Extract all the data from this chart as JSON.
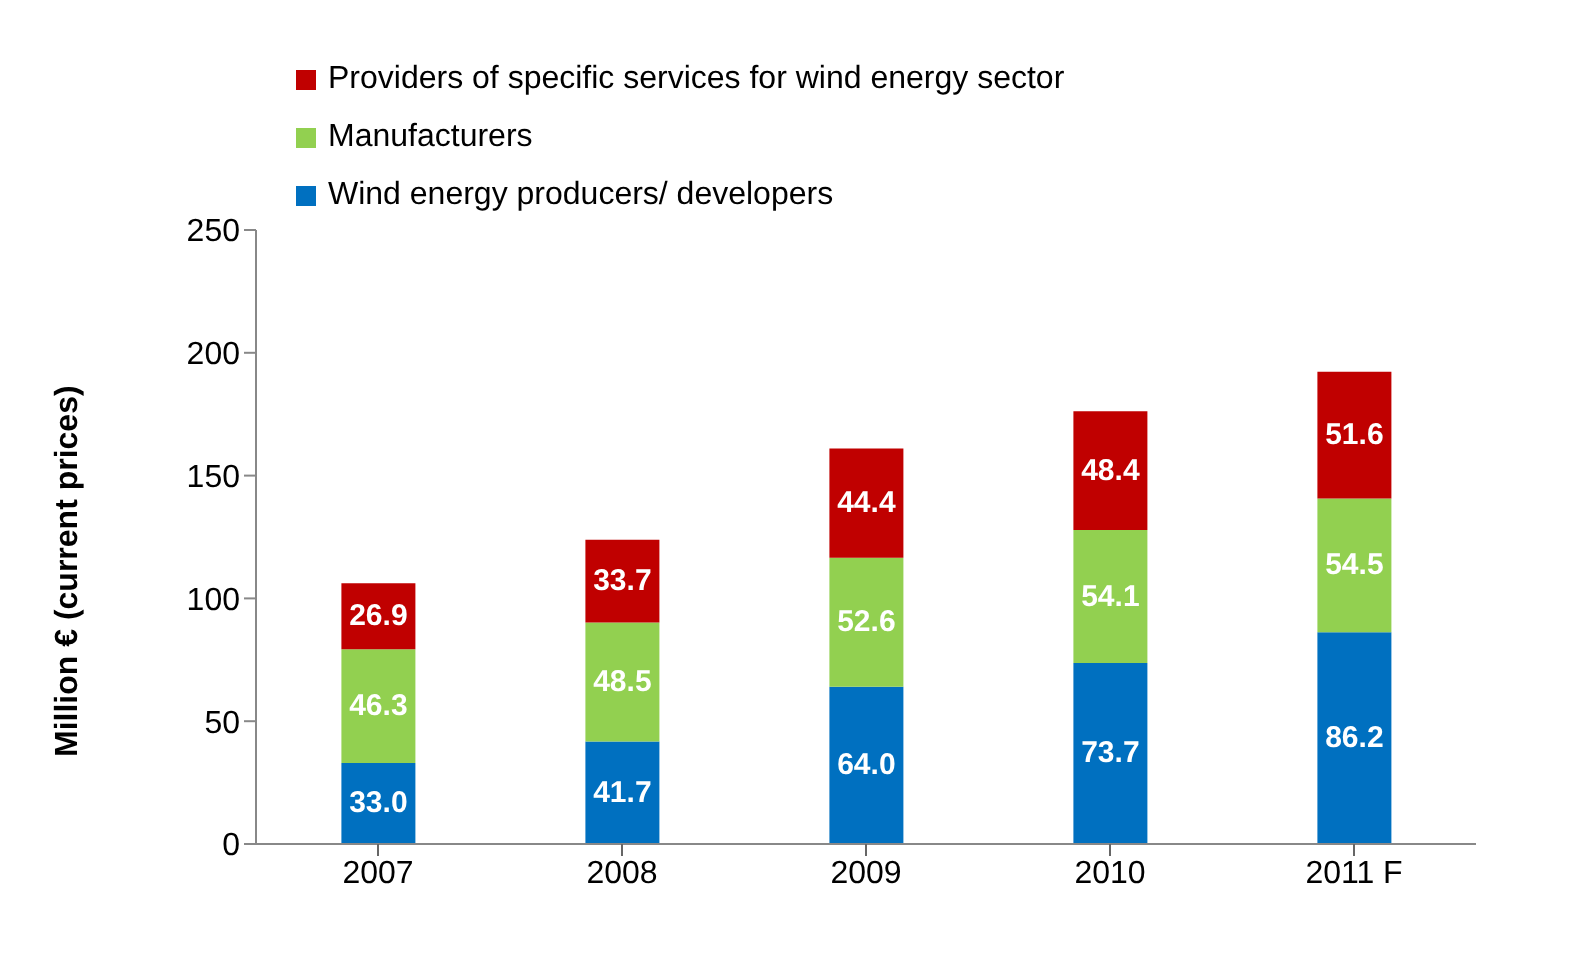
{
  "chart_data": {
    "type": "bar",
    "stacked": true,
    "ylabel": "Million € (current prices)",
    "categories": [
      "2007",
      "2008",
      "2009",
      "2010",
      "2011 F"
    ],
    "series": [
      {
        "name": "Wind energy producers/ developers",
        "color": "#0070c0",
        "values": [
          33.0,
          41.7,
          64.0,
          73.7,
          86.2
        ],
        "value_labels": [
          "33.0",
          "41.7",
          "64.0",
          "73.7",
          "86.2"
        ]
      },
      {
        "name": "Manufacturers",
        "color": "#92d050",
        "values": [
          46.3,
          48.5,
          52.6,
          54.1,
          54.5
        ],
        "value_labels": [
          "46.3",
          "48.5",
          "52.6",
          "54.1",
          "54.5"
        ]
      },
      {
        "name": "Providers of specific services for wind energy sector",
        "color": "#c00000",
        "values": [
          26.9,
          33.7,
          44.4,
          48.4,
          51.6
        ],
        "value_labels": [
          "26.9",
          "33.7",
          "44.4",
          "48.4",
          "51.6"
        ]
      }
    ],
    "ylim": [
      0,
      250
    ],
    "yticks": [
      0,
      50,
      100,
      150,
      200,
      250
    ],
    "legend": "top left"
  }
}
